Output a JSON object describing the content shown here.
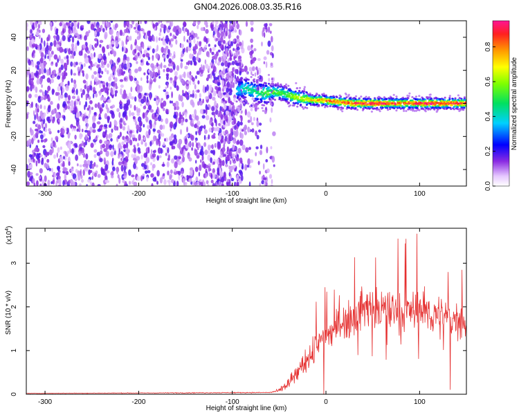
{
  "title": "GN04.2026.008.03.35.R16",
  "colors": {
    "snr_line": "#e53030",
    "frame": "#000000"
  },
  "colorbar": {
    "label": "Normalized spectral amplitude",
    "ticks": [
      "0.0",
      "0.2",
      "0.4",
      "0.6",
      "0.8"
    ],
    "tick_values": [
      0,
      0.2,
      0.4,
      0.6,
      0.8
    ],
    "range": [
      0,
      0.95
    ]
  },
  "chart_data": [
    {
      "type": "heatmap",
      "name": "spectrogram",
      "xlabel": "Height of straight line (km)",
      "ylabel": "Frequency (Hz)",
      "xlim": [
        -320,
        150
      ],
      "ylim": [
        -50,
        50
      ],
      "xticks": [
        -300,
        -200,
        -100,
        0,
        100
      ],
      "xtick_labels": [
        "-300",
        "-200",
        "-100",
        "0",
        "100"
      ],
      "yticks": [
        -40,
        -20,
        0,
        20,
        40
      ],
      "ytick_labels": [
        "-40",
        "-20",
        "0",
        "20",
        "40"
      ],
      "noise_region_x": [
        -320,
        -65
      ],
      "signal_ridge": {
        "x": [
          -95,
          -85,
          -75,
          -65,
          -55,
          -45,
          -35,
          -25,
          -15,
          -5,
          10,
          30,
          50,
          70,
          90,
          110,
          130,
          150
        ],
        "freq": [
          8,
          9,
          7,
          6,
          7,
          6,
          4,
          3,
          2,
          2,
          1,
          0,
          0,
          0,
          0,
          0,
          0,
          0
        ],
        "amplitude": [
          0.3,
          0.35,
          0.4,
          0.45,
          0.5,
          0.45,
          0.55,
          0.6,
          0.7,
          0.75,
          0.8,
          0.85,
          0.9,
          0.85,
          0.8,
          0.9,
          0.85,
          0.85
        ]
      }
    },
    {
      "type": "line",
      "name": "snr",
      "xlabel": "Height of straight line (km)",
      "ylabel": "SNR (10 * v/v)",
      "scale_label": "(x10",
      "scale_exp": "4",
      "scale_close": ")",
      "xlim": [
        -320,
        150
      ],
      "ylim": [
        0,
        3.8
      ],
      "xticks": [
        -300,
        -200,
        -100,
        0,
        100
      ],
      "xtick_labels": [
        "-300",
        "-200",
        "-100",
        "0",
        "100"
      ],
      "yticks": [
        0,
        1,
        2,
        3
      ],
      "ytick_labels": [
        "0",
        "1",
        "2",
        "3"
      ],
      "envelope": {
        "x": [
          -320,
          -60,
          -50,
          -40,
          -30,
          -20,
          -10,
          0,
          10,
          20,
          30,
          40,
          50,
          60,
          70,
          80,
          90,
          100,
          110,
          120,
          130,
          140,
          150
        ],
        "mean": [
          0.02,
          0.04,
          0.08,
          0.25,
          0.5,
          0.8,
          1.1,
          1.3,
          1.5,
          1.7,
          1.8,
          1.95,
          2.0,
          1.95,
          1.9,
          1.85,
          1.9,
          1.95,
          1.85,
          1.8,
          1.7,
          1.75,
          1.65
        ],
        "spread": [
          0.01,
          0.02,
          0.08,
          0.3,
          0.45,
          0.55,
          0.6,
          0.65,
          0.7,
          0.75,
          0.8,
          0.85,
          0.85,
          0.85,
          0.85,
          0.85,
          0.9,
          0.9,
          0.9,
          0.85,
          0.8,
          0.75,
          0.7
        ]
      },
      "peak_value": 3.8
    }
  ]
}
